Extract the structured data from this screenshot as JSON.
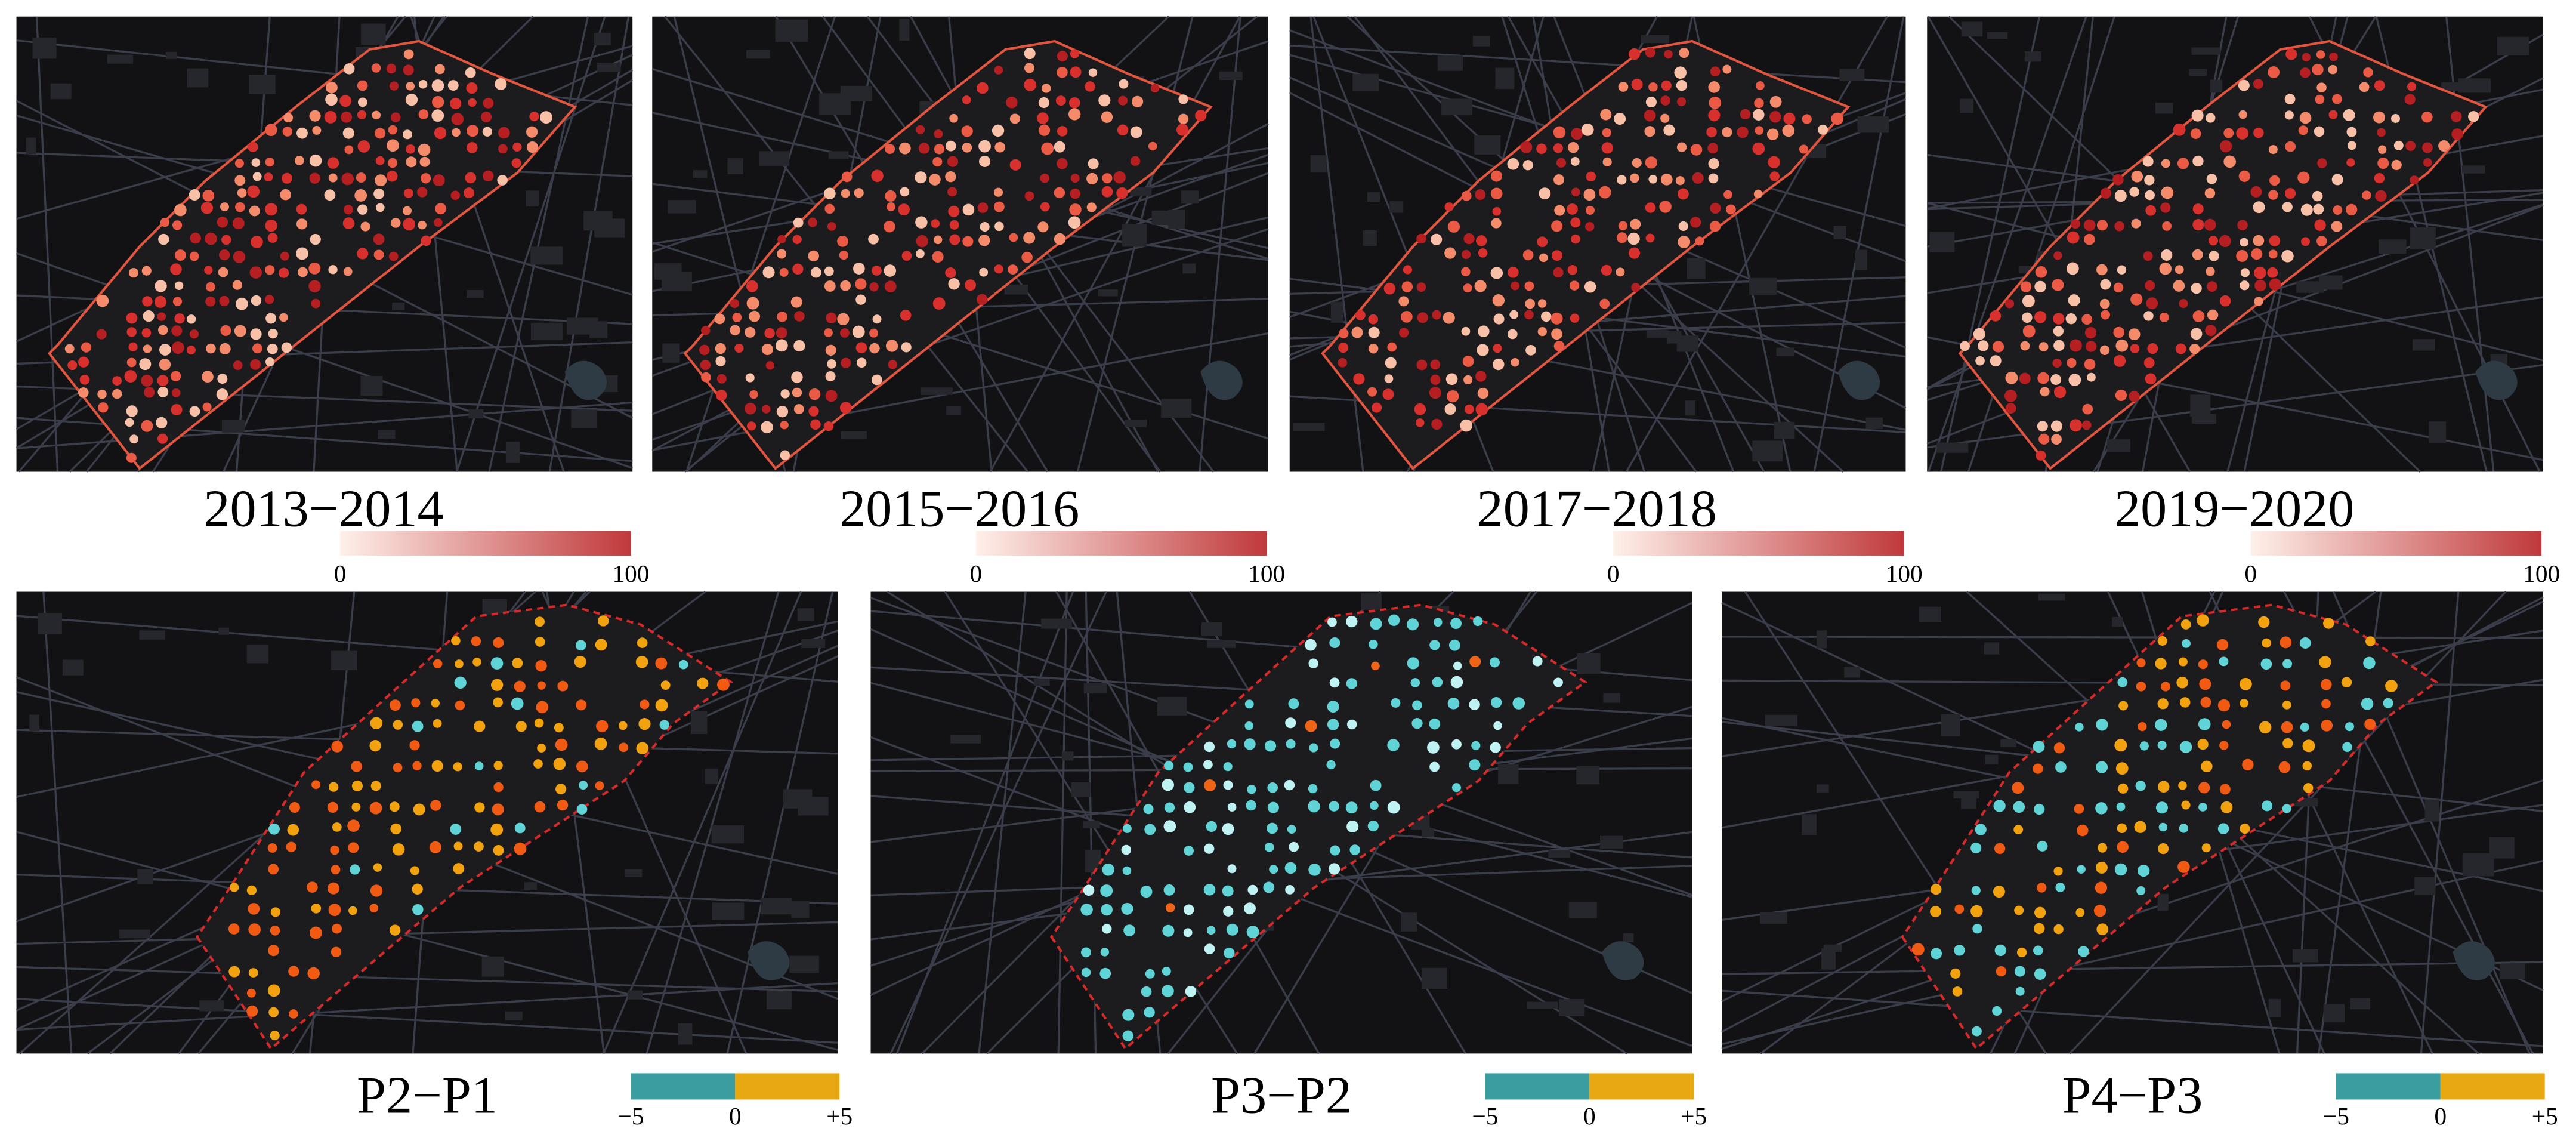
{
  "top_panels": [
    {
      "label": "2013−2014",
      "colorbar": {
        "min": "0",
        "max": "100"
      }
    },
    {
      "label": "2015−2016",
      "colorbar": {
        "min": "0",
        "max": "100"
      }
    },
    {
      "label": "2017−2018",
      "colorbar": {
        "min": "0",
        "max": "100"
      }
    },
    {
      "label": "2019−2020",
      "colorbar": {
        "min": "0",
        "max": "100"
      }
    }
  ],
  "bottom_panels": [
    {
      "label": "P2−P1",
      "colorbar": {
        "min": "−5",
        "mid": "0",
        "max": "+5"
      }
    },
    {
      "label": "P3−P2",
      "colorbar": {
        "min": "−5",
        "mid": "0",
        "max": "+5"
      }
    },
    {
      "label": "P4−P3",
      "colorbar": {
        "min": "−5",
        "mid": "0",
        "max": "+5"
      }
    }
  ]
}
